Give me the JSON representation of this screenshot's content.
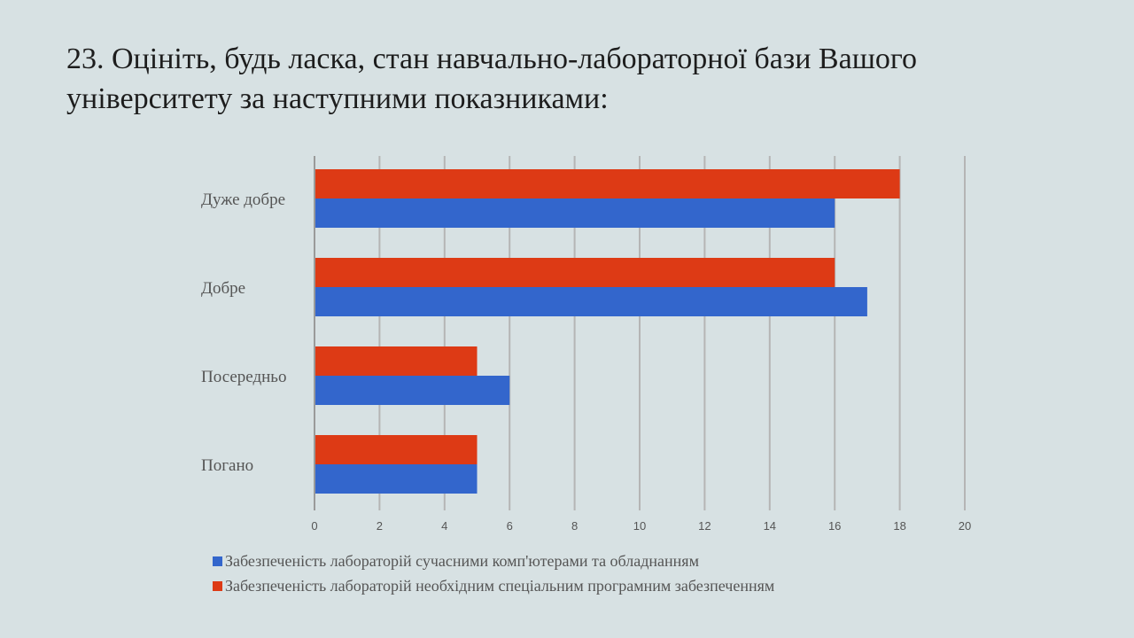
{
  "slide": {
    "title_line1": "23.  Оцініть, будь ласка, стан навчально-лабораторної бази Вашого",
    "title_line2": "університету за наступними показниками:"
  },
  "chart_data": {
    "type": "bar",
    "orientation": "horizontal",
    "categories": [
      "Дуже добре",
      "Добре",
      "Посередньо",
      "Погано"
    ],
    "series": [
      {
        "name": "Забезпеченість лабораторій необхідним спеціальним програмним забезпеченням",
        "color": "#dd3a15",
        "values": [
          18,
          16,
          5,
          5
        ]
      },
      {
        "name": "Забезпеченість лабораторій сучасними комп'ютерами та обладнанням",
        "color": "#3366cc",
        "values": [
          16,
          17,
          6,
          5
        ]
      }
    ],
    "xlim": [
      0,
      20
    ],
    "xticks": [
      "0",
      "2",
      "4",
      "6",
      "8",
      "10",
      "12",
      "14",
      "16",
      "18",
      "20"
    ],
    "grid": true,
    "legend_position": "bottom",
    "legend_order": [
      1,
      0
    ]
  }
}
